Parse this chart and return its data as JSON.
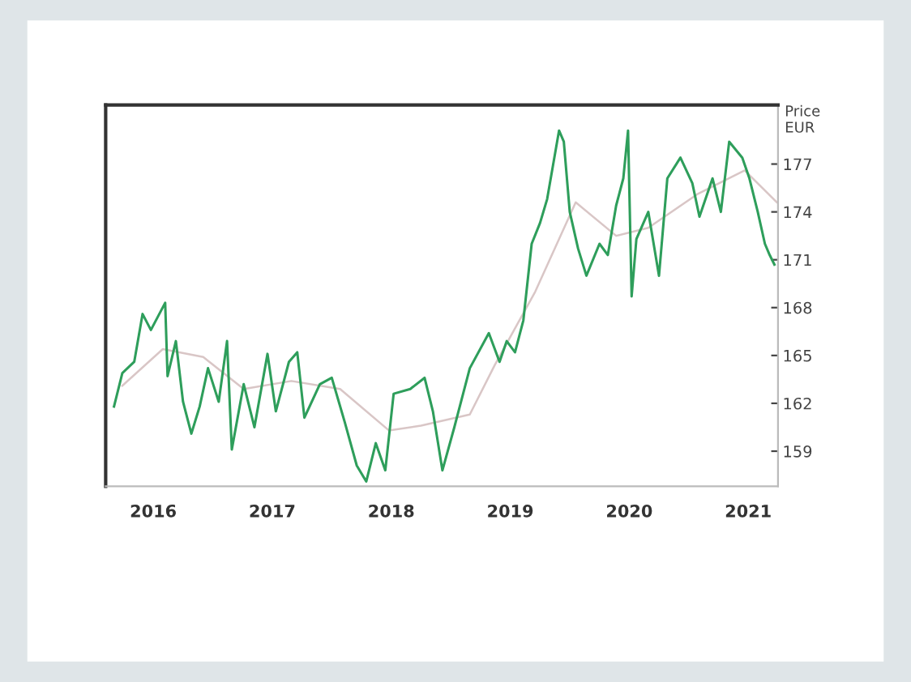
{
  "chart_data": {
    "type": "line",
    "ylabel": "Price\nEUR",
    "xlim": [
      2015.6,
      2021.25
    ],
    "xticks": [
      2016,
      2017,
      2018,
      2019,
      2020,
      2021
    ],
    "ylim": [
      156.8,
      180.7
    ],
    "yticks": [
      159,
      162,
      165,
      168,
      171,
      174,
      177
    ],
    "grid": false,
    "legend": false,
    "marker": "none",
    "line_style": "solid",
    "series": [
      {
        "color": "#2e9e5b",
        "x": [
          2015.67,
          2015.74,
          2015.84,
          2015.91,
          2015.98,
          2016.1,
          2016.12,
          2016.19,
          2016.25,
          2016.32,
          2016.39,
          2016.46,
          2016.55,
          2016.62,
          2016.66,
          2016.76,
          2016.85,
          2016.96,
          2017.03,
          2017.14,
          2017.21,
          2017.27,
          2017.4,
          2017.5,
          2017.61,
          2017.71,
          2017.79,
          2017.87,
          2017.95,
          2018.02,
          2018.16,
          2018.28,
          2018.35,
          2018.43,
          2018.53,
          2018.66,
          2018.82,
          2018.91,
          2018.97,
          2019.04,
          2019.11,
          2019.18,
          2019.25,
          2019.31,
          2019.41,
          2019.45,
          2019.5,
          2019.57,
          2019.64,
          2019.75,
          2019.82,
          2019.89,
          2019.95,
          2019.99,
          2020.02,
          2020.06,
          2020.16,
          2020.25,
          2020.32,
          2020.43,
          2020.53,
          2020.59,
          2020.7,
          2020.77,
          2020.84,
          2020.95,
          2021.01,
          2021.08,
          2021.14,
          2021.18,
          2021.22
        ],
        "values": [
          161.8,
          163.9,
          164.6,
          167.6,
          166.6,
          168.3,
          163.7,
          165.9,
          162.1,
          160.1,
          161.8,
          164.2,
          162.1,
          165.9,
          159.1,
          163.2,
          160.5,
          165.1,
          161.5,
          164.6,
          165.2,
          161.1,
          163.2,
          163.6,
          160.8,
          158.1,
          157.1,
          159.5,
          157.8,
          162.6,
          162.9,
          163.6,
          161.5,
          157.8,
          160.5,
          164.2,
          166.4,
          164.6,
          165.9,
          165.2,
          167.2,
          172.0,
          173.3,
          174.8,
          179.1,
          178.4,
          174.0,
          171.7,
          170.0,
          172.0,
          171.3,
          174.4,
          176.1,
          179.1,
          168.7,
          172.3,
          174.0,
          170.0,
          176.1,
          177.4,
          175.8,
          173.7,
          176.1,
          174.0,
          178.4,
          177.4,
          176.1,
          174.0,
          172.0,
          171.3,
          170.7
        ]
      },
      {
        "color": "#d9c6c6",
        "x": [
          2015.74,
          2016.08,
          2016.42,
          2016.76,
          2017.16,
          2017.57,
          2017.98,
          2018.25,
          2018.66,
          2018.87,
          2019.21,
          2019.55,
          2019.89,
          2020.16,
          2020.57,
          2020.97,
          2021.24
        ],
        "values": [
          163.1,
          165.4,
          164.9,
          162.9,
          163.4,
          162.9,
          160.3,
          160.6,
          161.3,
          164.4,
          169.0,
          174.6,
          172.5,
          173.0,
          175.1,
          176.6,
          174.6
        ]
      }
    ]
  }
}
